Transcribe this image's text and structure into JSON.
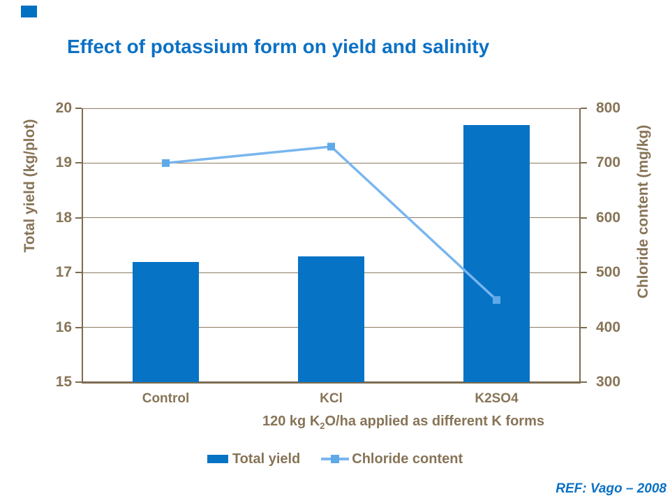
{
  "slide": {
    "title": "Effect of potassium form on yield and salinity",
    "reference": "REF: Vago – 2008",
    "title_color": "#0C71C4",
    "reference_color": "#0C71C4",
    "corner_accent_color": "#0070C0"
  },
  "chart_data": {
    "type": "bar",
    "subtype": "combo-bar-line-dual-axis",
    "categories": [
      "Control",
      "KCl",
      "K2SO4"
    ],
    "series": [
      {
        "name": "Total yield",
        "type": "bar",
        "axis": "left",
        "values": [
          17.2,
          17.3,
          19.7
        ],
        "color": "#0773C5"
      },
      {
        "name": "Chloride content",
        "type": "line",
        "axis": "right",
        "values": [
          700,
          730,
          450
        ],
        "color": "#79B6EF",
        "marker": "square",
        "marker_color": "#5FA9E8"
      }
    ],
    "left_axis": {
      "title": "Total yield (kg/plot)",
      "min": 15,
      "max": 20,
      "ticks": [
        20,
        19,
        18,
        17,
        16,
        15
      ]
    },
    "right_axis": {
      "title": "Chloride content (mg/kg)",
      "min": 300,
      "max": 800,
      "ticks": [
        800,
        700,
        600,
        500,
        400,
        300
      ]
    },
    "xlabel": "120 kg K2O/ha applied as different K forms",
    "xlabel_parts": {
      "prefix": "120 kg K",
      "sub": "2",
      "suffix": "O/ha applied as different K forms"
    },
    "grid": true,
    "legend_position": "bottom",
    "text_color": "#877457",
    "axis_color": "#7D6B50"
  }
}
